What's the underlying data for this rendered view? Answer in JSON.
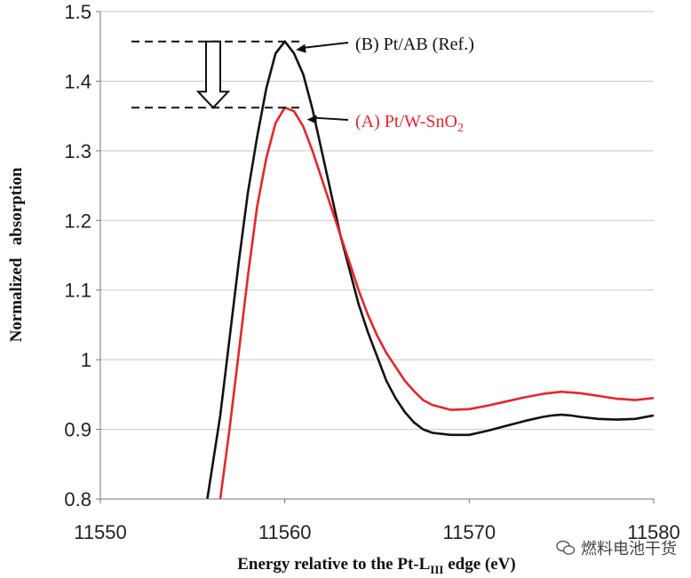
{
  "chart_data": {
    "type": "line",
    "title": "",
    "xlabel": "Energy relative to the Pt-L",
    "xlabel_sub": "III",
    "xlabel_tail": " edge (eV)",
    "ylabel": "Normalized   absorption",
    "xlim": [
      11550,
      11580
    ],
    "ylim": [
      0.8,
      1.5
    ],
    "x_ticks": [
      "11550",
      "11560",
      "11570",
      "11580"
    ],
    "y_ticks": [
      "0.8",
      "0.9",
      "1",
      "1.1",
      "1.2",
      "1.3",
      "1.4",
      "1.5"
    ],
    "grid": "horizontal",
    "series": [
      {
        "name": "(B) Pt/AB (Ref.)",
        "color": "#111111",
        "x": [
          11555.8,
          11556.5,
          11557,
          11557.5,
          11558,
          11558.5,
          11559,
          11559.5,
          11560,
          11560.5,
          11561,
          11561.5,
          11562,
          11562.5,
          11563,
          11563.5,
          11564,
          11564.5,
          11565,
          11565.5,
          11566,
          11566.5,
          11567,
          11567.5,
          11568,
          11569,
          11570,
          11571,
          11572,
          11573,
          11574,
          11574.5,
          11575,
          11575.5,
          11576,
          11577,
          11578,
          11579,
          11580
        ],
        "y": [
          0.8,
          0.92,
          1.03,
          1.14,
          1.24,
          1.32,
          1.39,
          1.44,
          1.457,
          1.44,
          1.41,
          1.36,
          1.3,
          1.24,
          1.18,
          1.13,
          1.08,
          1.04,
          1.005,
          0.97,
          0.945,
          0.925,
          0.91,
          0.9,
          0.895,
          0.892,
          0.892,
          0.898,
          0.905,
          0.912,
          0.918,
          0.92,
          0.921,
          0.92,
          0.918,
          0.915,
          0.914,
          0.915,
          0.92
        ]
      },
      {
        "name": "(A) Pt/W-SnO2",
        "color": "#e8242b",
        "x": [
          11556.5,
          11557,
          11557.5,
          11558,
          11558.5,
          11559,
          11559.5,
          11560,
          11560.5,
          11561,
          11561.5,
          11562,
          11562.5,
          11563,
          11563.5,
          11564,
          11564.5,
          11565,
          11565.5,
          11566,
          11566.5,
          11567,
          11567.5,
          11568,
          11569,
          11570,
          11571,
          11572,
          11573,
          11574,
          11575,
          11576,
          11577,
          11578,
          11579,
          11580
        ],
        "y": [
          0.8,
          0.9,
          1.01,
          1.12,
          1.22,
          1.29,
          1.34,
          1.362,
          1.357,
          1.335,
          1.3,
          1.26,
          1.22,
          1.18,
          1.14,
          1.1,
          1.065,
          1.035,
          1.01,
          0.99,
          0.97,
          0.955,
          0.942,
          0.935,
          0.928,
          0.929,
          0.934,
          0.94,
          0.946,
          0.951,
          0.954,
          0.952,
          0.948,
          0.944,
          0.942,
          0.945
        ]
      }
    ],
    "annotations": [
      {
        "label_pre": "(B) Pt/AB (Ref.)",
        "label_sub": "",
        "color": "#111111",
        "target": [
          11560.6,
          1.445
        ],
        "level": 1.457
      },
      {
        "label_pre": "(A) Pt/W-SnO",
        "label_sub": "2",
        "color": "#e8242b",
        "target": [
          11561.2,
          1.345
        ],
        "level": 1.362
      }
    ]
  },
  "watermark": {
    "text": "燃料电池干货"
  }
}
